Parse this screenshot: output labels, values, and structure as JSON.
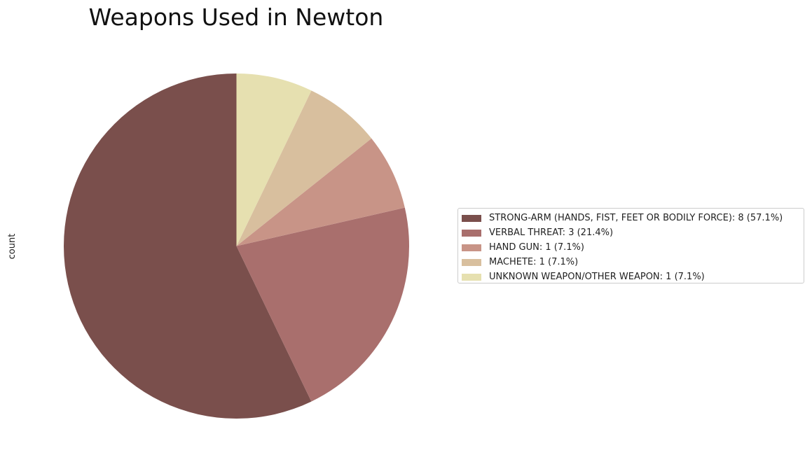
{
  "chart_data": {
    "type": "pie",
    "title": "Weapons Used in Newton",
    "ylabel": "count",
    "start_angle_deg": 90,
    "direction": "counterclockwise",
    "legend_position": "right",
    "slices": [
      {
        "label": "STRONG-ARM (HANDS, FIST, FEET OR BODILY FORCE): 8 (57.1%)",
        "value": 8,
        "percent": 57.1,
        "color": "#7a4f4c"
      },
      {
        "label": "VERBAL THREAT: 3 (21.4%)",
        "value": 3,
        "percent": 21.4,
        "color": "#a96f6d"
      },
      {
        "label": "HAND GUN: 1 (7.1%)",
        "value": 1,
        "percent": 7.1,
        "color": "#c89487"
      },
      {
        "label": "MACHETE: 1 (7.1%)",
        "value": 1,
        "percent": 7.1,
        "color": "#d8bf9e"
      },
      {
        "label": "UNKNOWN WEAPON/OTHER WEAPON: 1 (7.1%)",
        "value": 1,
        "percent": 7.1,
        "color": "#e6e0b0"
      }
    ]
  }
}
